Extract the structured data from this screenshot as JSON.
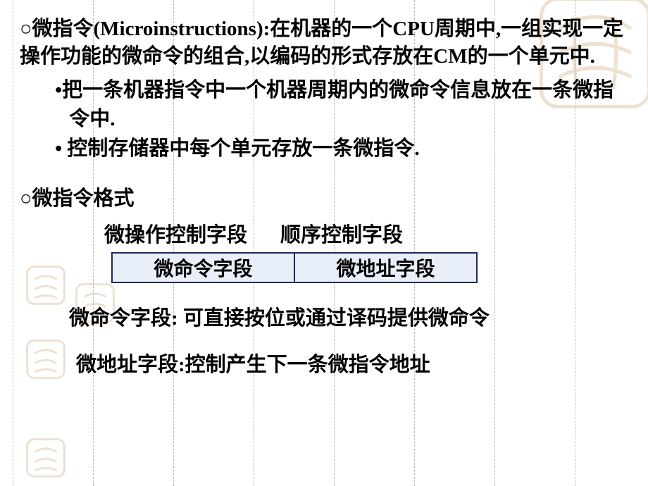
{
  "style": {
    "bg": "#ffffff",
    "text_color": "#000000",
    "grid_color": "#b9b9b9",
    "cell_bg": "#e9eff8",
    "cell_border": "#1f2a5b",
    "watermark_color": "#c08a4a",
    "base_fontsize": 29,
    "font_weight": "bold",
    "font_family": "SimSun"
  },
  "grid": {
    "x_positions": [
      18,
      132,
      246,
      360,
      474,
      588,
      702,
      816
    ]
  },
  "para1": "○微指令(Microinstructions):在机器的一个CPU周期中,一组实现一定操作功能的微命令的组合,以编码的形式存放在CM的一个单元中.",
  "sub": {
    "item1": "•把一条机器指令中一个机器周期内的微命令信息放在一条微指令中.",
    "item2": "• 控制存储器中每个单元存放一条微指令."
  },
  "section2_title": "○微指令格式",
  "labels": {
    "left": "微操作控制字段",
    "right": "顺序控制字段"
  },
  "table": {
    "left": "微命令字段",
    "right": "微地址字段"
  },
  "desc1": "微命令字段: 可直接按位或通过译码提供微命令",
  "desc2": "微地址字段:控制产生下一条微指令地址"
}
